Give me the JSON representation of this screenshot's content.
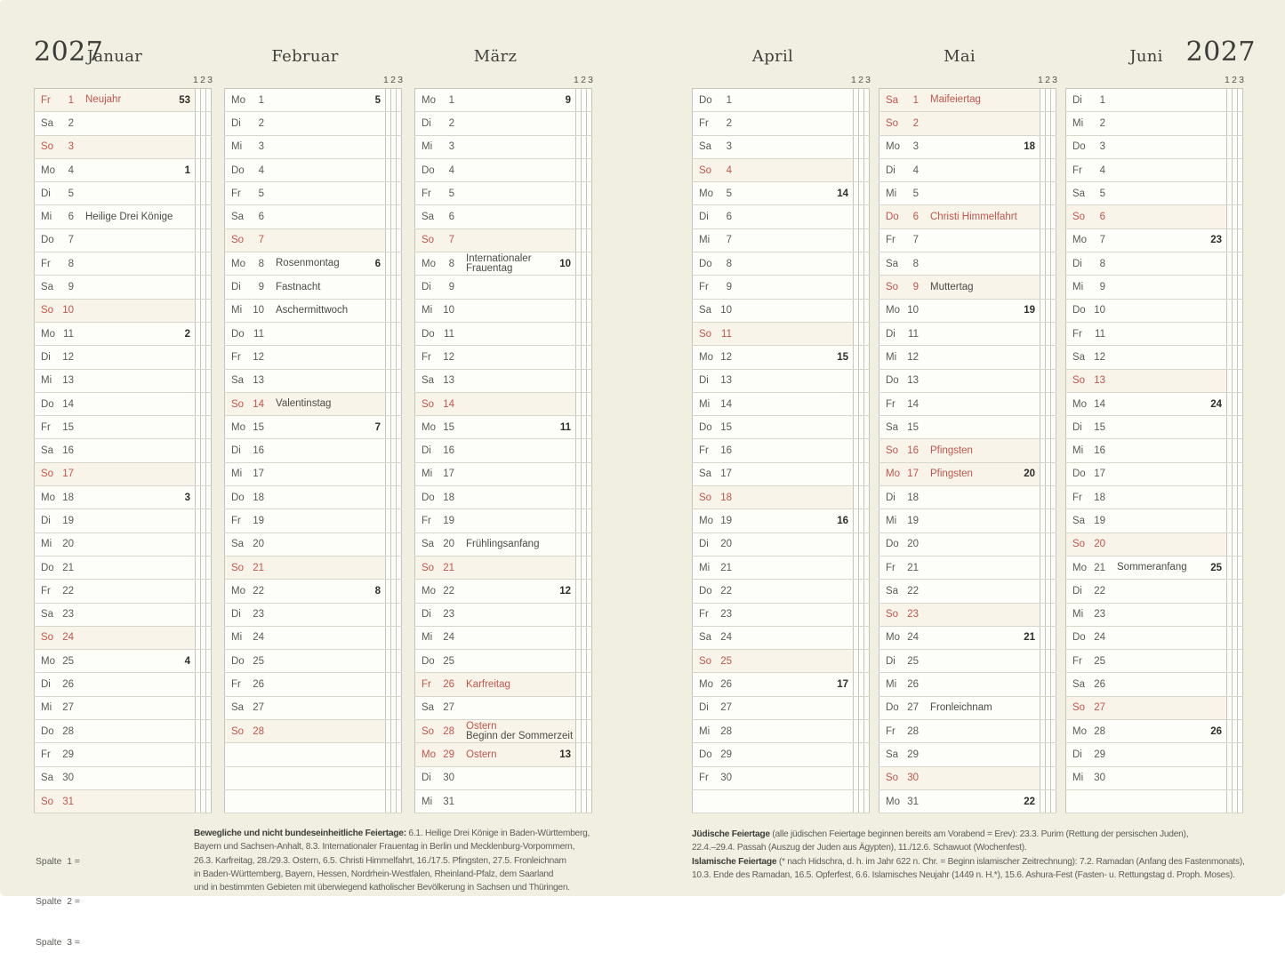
{
  "year": "2027",
  "spalte_digits": [
    "1",
    "2",
    "3"
  ],
  "colors": {
    "holiday_red": "#c0564e",
    "highlight_row_bg": "#f9f4e9",
    "paper_bg": "#f0efe2",
    "row_bg": "#fdfdfa"
  },
  "legend": [
    "Spalte  1 =",
    "Spalte  2 =",
    "Spalte  3 ="
  ],
  "footnotes": {
    "left": [
      {
        "b": "Bewegliche und nicht bundeseinheitliche Feiertage:",
        "t": " 6.1. Heilige Drei Könige in Baden-Württemberg,"
      },
      {
        "t": "Bayern und Sachsen-Anhalt, 8.3. Internationaler Frauentag in Berlin und Mecklenburg-Vorpommern,"
      },
      {
        "t": "26.3. Karfreitag, 28./29.3. Ostern, 6.5. Christi Himmelfahrt, 16./17.5. Pfingsten, 27.5. Fronleichnam"
      },
      {
        "t": "in Baden-Württemberg, Bayern, Hessen, Nordrhein-Westfalen, Rheinland-Pfalz, dem Saarland"
      },
      {
        "t": "und in bestimmten Gebieten mit überwiegend katholischer Bevölkerung in Sachsen und Thüringen."
      }
    ],
    "right": [
      {
        "b": "Jüdische Feiertage",
        "t": " (alle jüdischen Feiertage beginnen bereits am Vorabend = Erev): 23.3. Purim (Rettung der persischen Juden),"
      },
      {
        "t": "22.4.–29.4. Passah (Auszug der Juden aus Ägypten), 11./12.6. Schawuot (Wochenfest)."
      },
      {
        "b": "Islamische Feiertage",
        "t": " (* nach Hidschra, d. h. im Jahr 622 n. Chr. = Beginn islamischer Zeitrechnung): 7.2. Ramadan (Anfang des Fastenmonats),"
      },
      {
        "t": "10.3. Ende des Ramadan, 16.5. Opferfest, 6.6. Islamisches Neujahr (1449 n. H.*), 15.6. Ashura-Fest (Fasten- u. Rettungstag d. Proph. Moses)."
      }
    ]
  },
  "day_format_note": "day entry = [number, weekday, flags(r=red,h=highlighted), weekNumber, label, labelRedFlag, label2]",
  "months": [
    {
      "name": "Januar",
      "days": [
        [
          1,
          "Fr",
          "rh",
          "53",
          "Neujahr",
          "r"
        ],
        [
          2,
          "Sa"
        ],
        [
          3,
          "So",
          "rh"
        ],
        [
          4,
          "Mo",
          "",
          "1"
        ],
        [
          5,
          "Di"
        ],
        [
          6,
          "Mi",
          "",
          "",
          "Heilige Drei Könige"
        ],
        [
          7,
          "Do"
        ],
        [
          8,
          "Fr"
        ],
        [
          9,
          "Sa"
        ],
        [
          10,
          "So",
          "rh"
        ],
        [
          11,
          "Mo",
          "",
          "2"
        ],
        [
          12,
          "Di"
        ],
        [
          13,
          "Mi"
        ],
        [
          14,
          "Do"
        ],
        [
          15,
          "Fr"
        ],
        [
          16,
          "Sa"
        ],
        [
          17,
          "So",
          "rh"
        ],
        [
          18,
          "Mo",
          "",
          "3"
        ],
        [
          19,
          "Di"
        ],
        [
          20,
          "Mi"
        ],
        [
          21,
          "Do"
        ],
        [
          22,
          "Fr"
        ],
        [
          23,
          "Sa"
        ],
        [
          24,
          "So",
          "rh"
        ],
        [
          25,
          "Mo",
          "",
          "4"
        ],
        [
          26,
          "Di"
        ],
        [
          27,
          "Mi"
        ],
        [
          28,
          "Do"
        ],
        [
          29,
          "Fr"
        ],
        [
          30,
          "Sa"
        ],
        [
          31,
          "So",
          "rh"
        ]
      ]
    },
    {
      "name": "Februar",
      "days": [
        [
          1,
          "Mo",
          "",
          "5"
        ],
        [
          2,
          "Di"
        ],
        [
          3,
          "Mi"
        ],
        [
          4,
          "Do"
        ],
        [
          5,
          "Fr"
        ],
        [
          6,
          "Sa"
        ],
        [
          7,
          "So",
          "rh"
        ],
        [
          8,
          "Mo",
          "",
          "6",
          "Rosenmontag"
        ],
        [
          9,
          "Di",
          "",
          "",
          "Fastnacht"
        ],
        [
          10,
          "Mi",
          "",
          "",
          "Aschermittwoch"
        ],
        [
          11,
          "Do"
        ],
        [
          12,
          "Fr"
        ],
        [
          13,
          "Sa"
        ],
        [
          14,
          "So",
          "rh",
          "",
          "Valentinstag"
        ],
        [
          15,
          "Mo",
          "",
          "7"
        ],
        [
          16,
          "Di"
        ],
        [
          17,
          "Mi"
        ],
        [
          18,
          "Do"
        ],
        [
          19,
          "Fr"
        ],
        [
          20,
          "Sa"
        ],
        [
          21,
          "So",
          "rh"
        ],
        [
          22,
          "Mo",
          "",
          "8"
        ],
        [
          23,
          "Di"
        ],
        [
          24,
          "Mi"
        ],
        [
          25,
          "Do"
        ],
        [
          26,
          "Fr"
        ],
        [
          27,
          "Sa"
        ],
        [
          28,
          "So",
          "rh"
        ]
      ]
    },
    {
      "name": "März",
      "days": [
        [
          1,
          "Mo",
          "",
          "9"
        ],
        [
          2,
          "Di"
        ],
        [
          3,
          "Mi"
        ],
        [
          4,
          "Do"
        ],
        [
          5,
          "Fr"
        ],
        [
          6,
          "Sa"
        ],
        [
          7,
          "So",
          "rh"
        ],
        [
          8,
          "Mo",
          "",
          "10",
          "Internationaler",
          "",
          "Frauentag"
        ],
        [
          9,
          "Di"
        ],
        [
          10,
          "Mi"
        ],
        [
          11,
          "Do"
        ],
        [
          12,
          "Fr"
        ],
        [
          13,
          "Sa"
        ],
        [
          14,
          "So",
          "rh"
        ],
        [
          15,
          "Mo",
          "",
          "11"
        ],
        [
          16,
          "Di"
        ],
        [
          17,
          "Mi"
        ],
        [
          18,
          "Do"
        ],
        [
          19,
          "Fr"
        ],
        [
          20,
          "Sa",
          "",
          "",
          "Frühlingsanfang"
        ],
        [
          21,
          "So",
          "rh"
        ],
        [
          22,
          "Mo",
          "",
          "12"
        ],
        [
          23,
          "Di"
        ],
        [
          24,
          "Mi"
        ],
        [
          25,
          "Do"
        ],
        [
          26,
          "Fr",
          "rh",
          "",
          "Karfreitag",
          "r"
        ],
        [
          27,
          "Sa"
        ],
        [
          28,
          "So",
          "rh",
          "",
          "Ostern",
          "r",
          "Beginn der Sommerzeit"
        ],
        [
          29,
          "Mo",
          "rh",
          "13",
          "Ostern",
          "r"
        ],
        [
          30,
          "Di"
        ],
        [
          31,
          "Mi"
        ]
      ]
    },
    {
      "name": "April",
      "days": [
        [
          1,
          "Do"
        ],
        [
          2,
          "Fr"
        ],
        [
          3,
          "Sa"
        ],
        [
          4,
          "So",
          "rh"
        ],
        [
          5,
          "Mo",
          "",
          "14"
        ],
        [
          6,
          "Di"
        ],
        [
          7,
          "Mi"
        ],
        [
          8,
          "Do"
        ],
        [
          9,
          "Fr"
        ],
        [
          10,
          "Sa"
        ],
        [
          11,
          "So",
          "rh"
        ],
        [
          12,
          "Mo",
          "",
          "15"
        ],
        [
          13,
          "Di"
        ],
        [
          14,
          "Mi"
        ],
        [
          15,
          "Do"
        ],
        [
          16,
          "Fr"
        ],
        [
          17,
          "Sa"
        ],
        [
          18,
          "So",
          "rh"
        ],
        [
          19,
          "Mo",
          "",
          "16"
        ],
        [
          20,
          "Di"
        ],
        [
          21,
          "Mi"
        ],
        [
          22,
          "Do"
        ],
        [
          23,
          "Fr"
        ],
        [
          24,
          "Sa"
        ],
        [
          25,
          "So",
          "rh"
        ],
        [
          26,
          "Mo",
          "",
          "17"
        ],
        [
          27,
          "Di"
        ],
        [
          28,
          "Mi"
        ],
        [
          29,
          "Do"
        ],
        [
          30,
          "Fr"
        ]
      ]
    },
    {
      "name": "Mai",
      "days": [
        [
          1,
          "Sa",
          "rh",
          "",
          "Maifeiertag",
          "r"
        ],
        [
          2,
          "So",
          "rh"
        ],
        [
          3,
          "Mo",
          "",
          "18"
        ],
        [
          4,
          "Di"
        ],
        [
          5,
          "Mi"
        ],
        [
          6,
          "Do",
          "rh",
          "",
          "Christi Himmelfahrt",
          "r"
        ],
        [
          7,
          "Fr"
        ],
        [
          8,
          "Sa"
        ],
        [
          9,
          "So",
          "rh",
          "",
          "Muttertag"
        ],
        [
          10,
          "Mo",
          "",
          "19"
        ],
        [
          11,
          "Di"
        ],
        [
          12,
          "Mi"
        ],
        [
          13,
          "Do"
        ],
        [
          14,
          "Fr"
        ],
        [
          15,
          "Sa"
        ],
        [
          16,
          "So",
          "rh",
          "",
          "Pfingsten",
          "r"
        ],
        [
          17,
          "Mo",
          "rh",
          "20",
          "Pfingsten",
          "r"
        ],
        [
          18,
          "Di"
        ],
        [
          19,
          "Mi"
        ],
        [
          20,
          "Do"
        ],
        [
          21,
          "Fr"
        ],
        [
          22,
          "Sa"
        ],
        [
          23,
          "So",
          "rh"
        ],
        [
          24,
          "Mo",
          "",
          "21"
        ],
        [
          25,
          "Di"
        ],
        [
          26,
          "Mi"
        ],
        [
          27,
          "Do",
          "",
          "",
          "Fronleichnam"
        ],
        [
          28,
          "Fr"
        ],
        [
          29,
          "Sa"
        ],
        [
          30,
          "So",
          "rh"
        ],
        [
          31,
          "Mo",
          "",
          "22"
        ]
      ]
    },
    {
      "name": "Juni",
      "days": [
        [
          1,
          "Di"
        ],
        [
          2,
          "Mi"
        ],
        [
          3,
          "Do"
        ],
        [
          4,
          "Fr"
        ],
        [
          5,
          "Sa"
        ],
        [
          6,
          "So",
          "rh"
        ],
        [
          7,
          "Mo",
          "",
          "23"
        ],
        [
          8,
          "Di"
        ],
        [
          9,
          "Mi"
        ],
        [
          10,
          "Do"
        ],
        [
          11,
          "Fr"
        ],
        [
          12,
          "Sa"
        ],
        [
          13,
          "So",
          "rh"
        ],
        [
          14,
          "Mo",
          "",
          "24"
        ],
        [
          15,
          "Di"
        ],
        [
          16,
          "Mi"
        ],
        [
          17,
          "Do"
        ],
        [
          18,
          "Fr"
        ],
        [
          19,
          "Sa"
        ],
        [
          20,
          "So",
          "rh"
        ],
        [
          21,
          "Mo",
          "",
          "25",
          "Sommeranfang"
        ],
        [
          22,
          "Di"
        ],
        [
          23,
          "Mi"
        ],
        [
          24,
          "Do"
        ],
        [
          25,
          "Fr"
        ],
        [
          26,
          "Sa"
        ],
        [
          27,
          "So",
          "rh"
        ],
        [
          28,
          "Mo",
          "",
          "26"
        ],
        [
          29,
          "Di"
        ],
        [
          30,
          "Mi"
        ]
      ]
    }
  ]
}
